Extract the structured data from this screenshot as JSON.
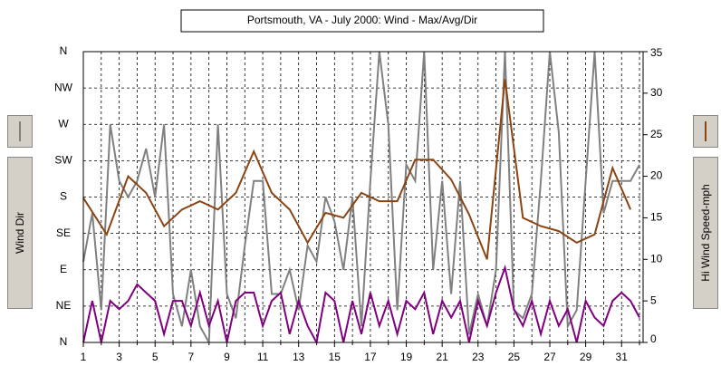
{
  "chart_data": {
    "type": "line",
    "title": "Portsmouth, VA - July 2000: Wind - Max/Avg/Dir",
    "xlim": [
      1,
      32.2
    ],
    "xticks": [
      1,
      3,
      5,
      7,
      9,
      11,
      13,
      15,
      17,
      19,
      21,
      23,
      25,
      27,
      29,
      31
    ],
    "xminorticks": [
      2,
      4,
      6,
      8,
      10,
      12,
      14,
      16,
      18,
      20,
      22,
      24,
      26,
      28,
      30,
      32
    ],
    "ylim": [
      0,
      360
    ],
    "yticks": [
      {
        "value": 0,
        "label": "N"
      },
      {
        "value": 45,
        "label": "NE"
      },
      {
        "value": 90,
        "label": "E"
      },
      {
        "value": 135,
        "label": "SE"
      },
      {
        "value": 180,
        "label": "S"
      },
      {
        "value": 225,
        "label": "SW"
      },
      {
        "value": 270,
        "label": "W"
      },
      {
        "value": 315,
        "label": "NW"
      },
      {
        "value": 360,
        "label": "N"
      }
    ],
    "y2lim": [
      0,
      35
    ],
    "y2ticks": [
      0,
      5,
      10,
      15,
      20,
      25,
      30,
      35
    ],
    "grid": true,
    "series": [
      {
        "name": "Wind Dir",
        "color": "#808080",
        "axis": "y",
        "x": [
          1,
          1.5,
          2,
          2.5,
          3,
          3.5,
          4,
          4.5,
          5,
          5.5,
          6,
          6.5,
          7,
          7.5,
          8,
          8.5,
          9,
          9.5,
          10,
          10.5,
          11,
          11.5,
          12,
          12.5,
          13,
          13.5,
          14,
          14.5,
          15,
          15.5,
          16,
          16.5,
          17,
          17.5,
          18,
          18.5,
          19,
          19.5,
          20,
          20.5,
          21,
          21.5,
          22,
          22.5,
          23,
          23.5,
          24,
          24.5,
          25,
          25.5,
          26,
          26.5,
          27,
          27.5,
          28,
          28.5,
          29,
          29.5,
          30,
          30.5,
          31,
          31.5,
          32
        ],
        "values": [
          100,
          160,
          40,
          270,
          200,
          180,
          200,
          240,
          180,
          270,
          60,
          20,
          90,
          20,
          0,
          270,
          60,
          30,
          120,
          200,
          200,
          60,
          60,
          90,
          40,
          120,
          100,
          180,
          150,
          90,
          180,
          20,
          200,
          360,
          270,
          40,
          220,
          200,
          360,
          90,
          200,
          60,
          200,
          10,
          60,
          20,
          90,
          360,
          40,
          30,
          60,
          200,
          360,
          260,
          20,
          40,
          200,
          360,
          160,
          200,
          200,
          200,
          220
        ]
      },
      {
        "color": "#800080",
        "axis": "y2",
        "x": [
          1,
          1.5,
          2,
          2.5,
          3,
          3.5,
          4,
          4.5,
          5,
          5.5,
          6,
          6.5,
          7,
          7.5,
          8,
          8.5,
          9,
          9.5,
          10,
          10.5,
          11,
          11.5,
          12,
          12.5,
          13,
          13.5,
          14,
          14.5,
          15,
          15.5,
          16,
          16.5,
          17,
          17.5,
          18,
          18.5,
          19,
          19.5,
          20,
          20.5,
          21,
          21.5,
          22,
          22.5,
          23,
          23.5,
          24,
          24.5,
          25,
          25.5,
          26,
          26.5,
          27,
          27.5,
          28,
          28.5,
          29,
          29.5,
          30,
          30.5,
          31,
          31.5,
          32
        ],
        "values": [
          0,
          5,
          0,
          5,
          4,
          5,
          7,
          6,
          5,
          1,
          5,
          5,
          2,
          6,
          2,
          5,
          0,
          5,
          6,
          6,
          2,
          5,
          6,
          1,
          5,
          2,
          0,
          6,
          5,
          0,
          5,
          1,
          6,
          2,
          5,
          1,
          5,
          4,
          6,
          1,
          5,
          3,
          5,
          0,
          5,
          2,
          6,
          9,
          4,
          2,
          5,
          1,
          5,
          2,
          4,
          0,
          5,
          3,
          2,
          5,
          6,
          5,
          3
        ]
      },
      {
        "name": "Hi Wind Speed-mph",
        "color": "#8b4513",
        "axis": "y2",
        "x": [
          1,
          2.3,
          3.5,
          4.5,
          5.5,
          6.5,
          7.5,
          8.5,
          9.5,
          10.5,
          11.5,
          12.5,
          13.5,
          14.5,
          15.5,
          16.5,
          17.5,
          18.5,
          19.5,
          20.5,
          21.5,
          22.5,
          23.5,
          24.5,
          25.5,
          26.5,
          27.5,
          28.5,
          29.5,
          30.5,
          31.5
        ],
        "values": [
          17.4,
          13,
          20,
          18,
          14,
          16,
          17,
          16,
          18,
          23,
          18,
          16,
          12,
          15.6,
          15,
          18,
          17,
          17,
          22,
          22,
          19.6,
          15.4,
          10,
          31.7,
          15,
          14,
          13.4,
          12,
          13,
          21,
          16
        ]
      }
    ]
  }
}
